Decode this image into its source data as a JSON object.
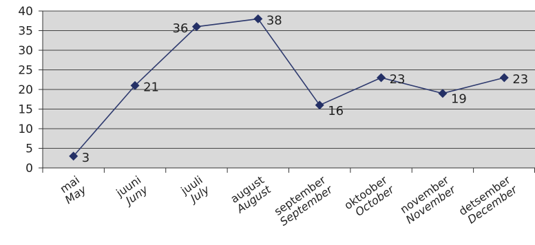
{
  "chart_data": {
    "type": "line",
    "categories": [
      {
        "et": "mai",
        "en": "May"
      },
      {
        "et": "juuni",
        "en": "Juny"
      },
      {
        "et": "juuli",
        "en": "July"
      },
      {
        "et": "august",
        "en": "August"
      },
      {
        "et": "september",
        "en": "September"
      },
      {
        "et": "oktoober",
        "en": "October"
      },
      {
        "et": "november",
        "en": "November"
      },
      {
        "et": "detsember",
        "en": "December"
      }
    ],
    "values": [
      3,
      21,
      36,
      38,
      16,
      23,
      19,
      23
    ],
    "ylim": [
      0,
      40
    ],
    "yticks": [
      "0",
      "5",
      "10",
      "15",
      "20",
      "25",
      "30",
      "35",
      "40"
    ],
    "title": "",
    "xlabel": "",
    "ylabel": "",
    "grid": "horizontal",
    "legend": "none",
    "colors": {
      "plot_background": "#d9d9d9",
      "line": "#2e3a6e",
      "marker": "#243066",
      "gridline": "#444444"
    }
  }
}
